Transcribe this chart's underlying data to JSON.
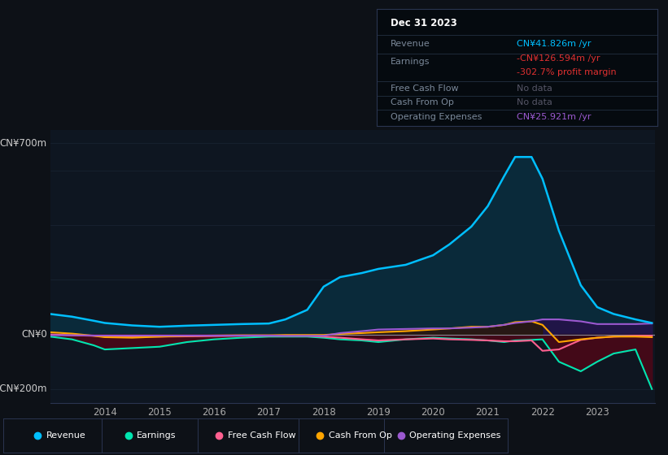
{
  "background_color": "#0d1117",
  "plot_bg_color": "#0e1621",
  "ylim": [
    -250,
    750
  ],
  "years": [
    2013.0,
    2013.4,
    2013.8,
    2014.0,
    2014.5,
    2015.0,
    2015.5,
    2016.0,
    2016.5,
    2017.0,
    2017.3,
    2017.7,
    2018.0,
    2018.3,
    2018.7,
    2019.0,
    2019.5,
    2020.0,
    2020.3,
    2020.7,
    2021.0,
    2021.3,
    2021.5,
    2021.8,
    2022.0,
    2022.3,
    2022.7,
    2023.0,
    2023.3,
    2023.7,
    2024.0
  ],
  "revenue": [
    75,
    65,
    50,
    42,
    33,
    28,
    32,
    35,
    38,
    40,
    55,
    90,
    175,
    210,
    225,
    240,
    255,
    290,
    330,
    395,
    470,
    580,
    650,
    650,
    570,
    380,
    180,
    100,
    75,
    55,
    42
  ],
  "earnings": [
    -8,
    -18,
    -40,
    -55,
    -50,
    -45,
    -28,
    -18,
    -12,
    -8,
    -8,
    -8,
    -12,
    -18,
    -22,
    -28,
    -18,
    -12,
    -15,
    -18,
    -22,
    -28,
    -22,
    -20,
    -18,
    -100,
    -135,
    -100,
    -70,
    -55,
    -200
  ],
  "free_cash_flow": [
    0,
    -3,
    -5,
    -8,
    -8,
    -8,
    -7,
    -6,
    -5,
    -5,
    -5,
    -5,
    -8,
    -12,
    -18,
    -22,
    -18,
    -15,
    -18,
    -20,
    -22,
    -25,
    -25,
    -22,
    -60,
    -55,
    -20,
    -12,
    -8,
    -5,
    -5
  ],
  "cash_from_op": [
    8,
    3,
    -5,
    -10,
    -12,
    -8,
    -5,
    -4,
    -3,
    -3,
    -2,
    -2,
    -2,
    2,
    5,
    8,
    12,
    18,
    22,
    28,
    28,
    35,
    45,
    48,
    35,
    -28,
    -18,
    -12,
    -8,
    -8,
    -10
  ],
  "op_expenses": [
    -3,
    -3,
    -4,
    -4,
    -4,
    -4,
    -4,
    -4,
    -4,
    -4,
    -5,
    -5,
    -5,
    5,
    12,
    18,
    20,
    22,
    22,
    25,
    28,
    35,
    42,
    48,
    55,
    55,
    48,
    38,
    38,
    38,
    40
  ],
  "revenue_color": "#00bfff",
  "earnings_color": "#00e5b0",
  "fcf_color": "#ff6090",
  "cfo_color": "#ffa500",
  "opex_color": "#9b59d0",
  "revenue_fill_color": "#0a2a3a",
  "earnings_neg_fill": "#4a0818",
  "opex_pos_fill": "#25124a",
  "cfo_pos_fill": "#2a1a00",
  "legend_items": [
    "Revenue",
    "Earnings",
    "Free Cash Flow",
    "Cash From Op",
    "Operating Expenses"
  ],
  "legend_colors": [
    "#00bfff",
    "#00e5b0",
    "#ff6090",
    "#ffa500",
    "#9b59d0"
  ],
  "xtick_vals": [
    2014,
    2015,
    2016,
    2017,
    2018,
    2019,
    2020,
    2021,
    2022,
    2023
  ],
  "grid_color": "#1a2535",
  "info_box": {
    "date": "Dec 31 2023",
    "revenue_val": "CN¥41.826m",
    "revenue_color": "#00bfff",
    "earnings_val": "-CN¥126.594m",
    "earnings_color": "#e03030",
    "margin_val": "-302.7%",
    "margin_color": "#e03030",
    "opex_val": "CN¥25.921m",
    "opex_color": "#9b59d0"
  }
}
